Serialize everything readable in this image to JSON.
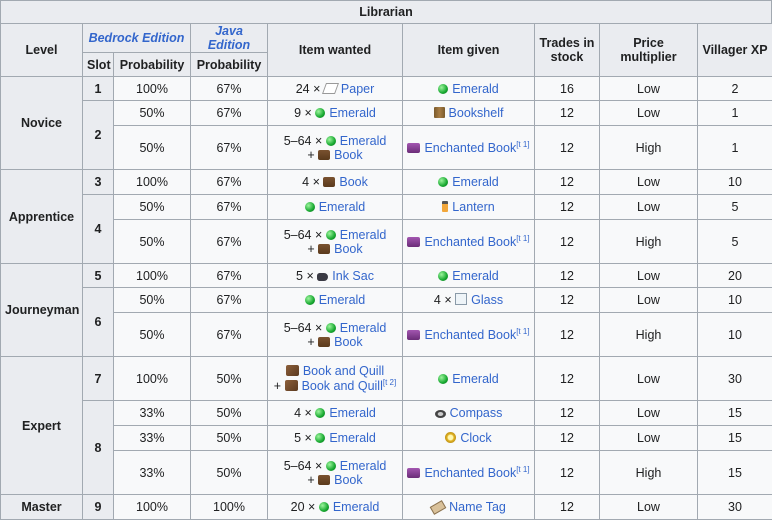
{
  "caption": "Librarian",
  "headers": {
    "level": "Level",
    "bedrock": "Bedrock Edition",
    "java": "Java Edition",
    "item_wanted": "Item wanted",
    "item_given": "Item given",
    "trades_line1": "Trades in",
    "trades_line2": "stock",
    "price": "Price multiplier",
    "xp": "Villager XP",
    "slot": "Slot",
    "prob_b": "Probability",
    "prob_j": "Probability"
  },
  "levels": {
    "novice": "Novice",
    "apprentice": "Apprentice",
    "journeyman": "Journeyman",
    "expert": "Expert",
    "master": "Master"
  },
  "slots": [
    "1",
    "2",
    "3",
    "4",
    "5",
    "6",
    "7",
    "8",
    "9"
  ],
  "rows": [
    {
      "pb": "100%",
      "pj": "67%",
      "want_q": "24 ×",
      "want": "Paper",
      "give": "Emerald",
      "stock": "16",
      "price": "Low",
      "xp": "2"
    },
    {
      "pb": "50%",
      "pj": "67%",
      "want_q": "9 ×",
      "want": "Emerald",
      "give": "Bookshelf",
      "stock": "12",
      "price": "Low",
      "xp": "1"
    },
    {
      "pb": "50%",
      "pj": "67%",
      "want_q": "5–64 ×",
      "want": "Emerald",
      "want2": "Book",
      "give": "Enchanted Book",
      "note": "[t 1]",
      "stock": "12",
      "price": "High",
      "xp": "1"
    },
    {
      "pb": "100%",
      "pj": "67%",
      "want_q": "4 ×",
      "want": "Book",
      "give": "Emerald",
      "stock": "12",
      "price": "Low",
      "xp": "10"
    },
    {
      "pb": "50%",
      "pj": "67%",
      "want": "Emerald",
      "give": "Lantern",
      "stock": "12",
      "price": "Low",
      "xp": "5"
    },
    {
      "pb": "50%",
      "pj": "67%",
      "want_q": "5–64 ×",
      "want": "Emerald",
      "want2": "Book",
      "give": "Enchanted Book",
      "note": "[t 1]",
      "stock": "12",
      "price": "High",
      "xp": "5"
    },
    {
      "pb": "100%",
      "pj": "67%",
      "want_q": "5 ×",
      "want": "Ink Sac",
      "give": "Emerald",
      "stock": "12",
      "price": "Low",
      "xp": "20"
    },
    {
      "pb": "50%",
      "pj": "67%",
      "want": "Emerald",
      "give_q": "4 ×",
      "give": "Glass",
      "stock": "12",
      "price": "Low",
      "xp": "10"
    },
    {
      "pb": "50%",
      "pj": "67%",
      "want_q": "5–64 ×",
      "want": "Emerald",
      "want2": "Book",
      "give": "Enchanted Book",
      "note": "[t 1]",
      "stock": "12",
      "price": "High",
      "xp": "10"
    },
    {
      "pb": "100%",
      "pj": "50%",
      "want": "Book and Quill",
      "want2": "Book and Quill",
      "note": "[t 2]",
      "give": "Emerald",
      "stock": "12",
      "price": "Low",
      "xp": "30"
    },
    {
      "pb": "33%",
      "pj": "50%",
      "want_q": "4 ×",
      "want": "Emerald",
      "give": "Compass",
      "stock": "12",
      "price": "Low",
      "xp": "15"
    },
    {
      "pb": "33%",
      "pj": "50%",
      "want_q": "5 ×",
      "want": "Emerald",
      "give": "Clock",
      "stock": "12",
      "price": "Low",
      "xp": "15"
    },
    {
      "pb": "33%",
      "pj": "50%",
      "want_q": "5–64 ×",
      "want": "Emerald",
      "want2": "Book",
      "give": "Enchanted Book",
      "note": "[t 1]",
      "stock": "12",
      "price": "High",
      "xp": "15"
    },
    {
      "pb": "100%",
      "pj": "100%",
      "want_q": "20 ×",
      "want": "Emerald",
      "give": "Name Tag",
      "stock": "12",
      "price": "Low",
      "xp": "30"
    }
  ]
}
